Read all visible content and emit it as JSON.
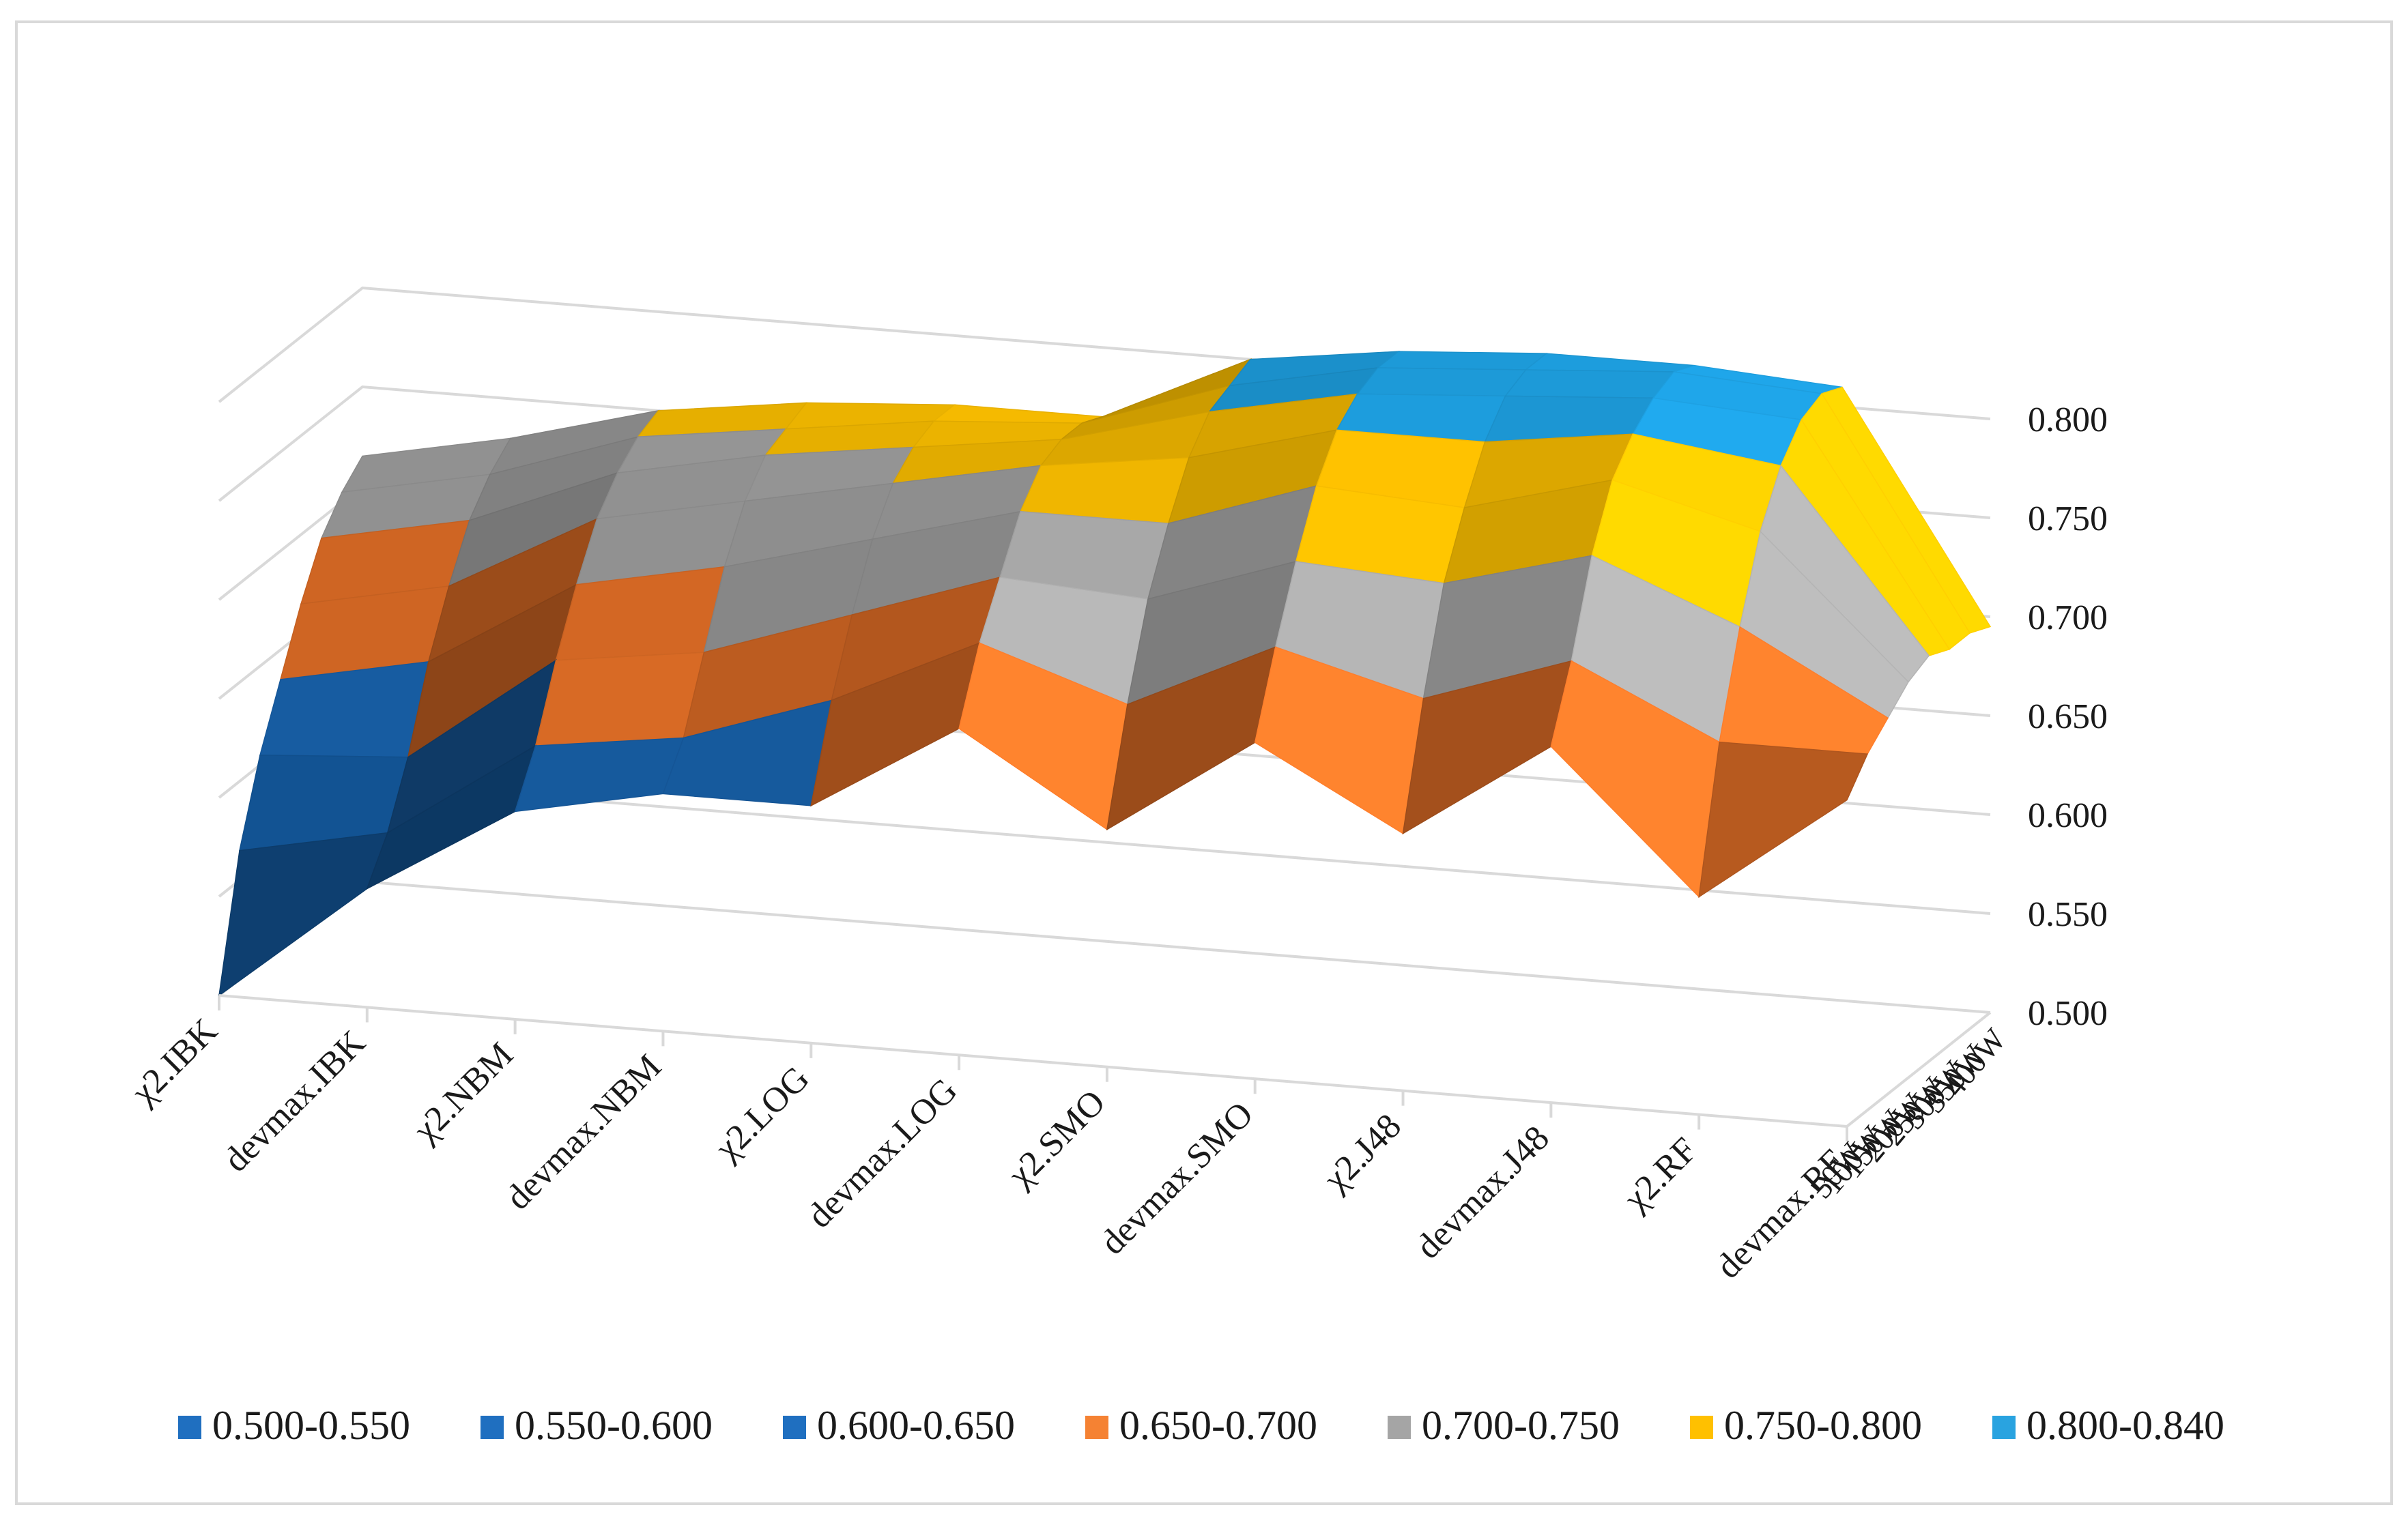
{
  "chart_data": {
    "type": "surface",
    "title": "",
    "x_categories": [
      "χ2.IBK",
      "devmax.IBK",
      "χ2.NBM",
      "devmax.NBM",
      "χ2.LOG",
      "devmax.LOG",
      "χ2.SMO",
      "devmax.SMO",
      "χ2.J48",
      "devmax.J48",
      "χ2.RF",
      "devmax.RF"
    ],
    "depth_categories": [
      "50W",
      "100W",
      "150W",
      "200W",
      "250W",
      "300W",
      "350W",
      "400W"
    ],
    "z_ticks": [
      "0.500",
      "0.550",
      "0.600",
      "0.650",
      "0.700",
      "0.750",
      "0.800"
    ],
    "zlim": [
      0.5,
      0.8
    ],
    "grid": true,
    "legend_position": "bottom",
    "legend": [
      {
        "label": "0.500-0.550",
        "color": "#1f6fc0"
      },
      {
        "label": "0.550-0.600",
        "color": "#1f6fc0"
      },
      {
        "label": "0.600-0.650",
        "color": "#1f6fc0"
      },
      {
        "label": "0.650-0.700",
        "color": "#f58233"
      },
      {
        "label": "0.700-0.750",
        "color": "#a5a5a5"
      },
      {
        "label": "0.750-0.800",
        "color": "#ffc000"
      },
      {
        "label": "0.800-0.840",
        "color": "#29a3e0"
      }
    ],
    "series": [
      {
        "name": "50W",
        "values": [
          0.5,
          0.56,
          0.605,
          0.62,
          0.62,
          0.665,
          0.62,
          0.67,
          0.63,
          0.68,
          0.61,
          0.665
        ]
      },
      {
        "name": "100W",
        "values": [
          0.565,
          0.58,
          0.63,
          0.64,
          0.665,
          0.7,
          0.675,
          0.71,
          0.69,
          0.715,
          0.68,
          0.68
        ]
      },
      {
        "name": "150W",
        "values": [
          0.605,
          0.61,
          0.665,
          0.675,
          0.7,
          0.725,
          0.72,
          0.745,
          0.74,
          0.76,
          0.73,
          0.69
        ]
      },
      {
        "name": "200W",
        "values": [
          0.635,
          0.65,
          0.695,
          0.71,
          0.73,
          0.75,
          0.75,
          0.775,
          0.77,
          0.79,
          0.77,
          0.7
        ]
      },
      {
        "name": "250W",
        "values": [
          0.665,
          0.68,
          0.72,
          0.735,
          0.75,
          0.765,
          0.775,
          0.795,
          0.795,
          0.805,
          0.795,
          0.705
        ]
      },
      {
        "name": "300W",
        "values": [
          0.69,
          0.705,
          0.735,
          0.75,
          0.76,
          0.77,
          0.79,
          0.805,
          0.81,
          0.815,
          0.81,
          0.7
        ]
      },
      {
        "name": "350W",
        "values": [
          0.705,
          0.72,
          0.745,
          0.755,
          0.765,
          0.77,
          0.795,
          0.81,
          0.815,
          0.82,
          0.815,
          0.7
        ]
      },
      {
        "name": "400W",
        "values": [
          0.715,
          0.73,
          0.75,
          0.76,
          0.765,
          0.765,
          0.8,
          0.81,
          0.815,
          0.815,
          0.81,
          0.695
        ]
      }
    ]
  }
}
